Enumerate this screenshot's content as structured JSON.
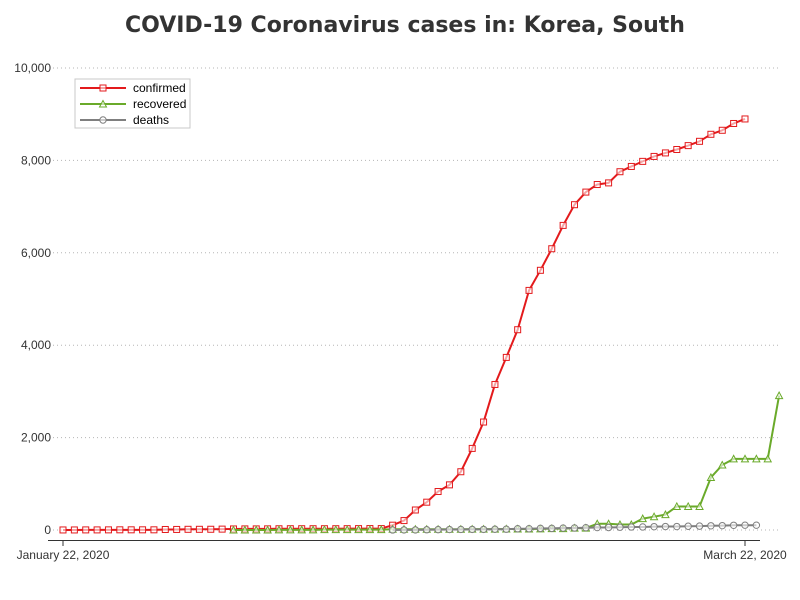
{
  "chart_data": {
    "type": "line",
    "title": "COVID-19 Coronavirus cases in: Korea, South",
    "xlabel": "",
    "ylabel": "",
    "x_start": "2020-01-22",
    "x_end": "2020-03-22",
    "x_tick_labels": [
      "January 22, 2020",
      "March 22, 2020"
    ],
    "ylim": [
      0,
      10000
    ],
    "y_ticks": [
      0,
      2000,
      4000,
      6000,
      8000,
      10000
    ],
    "y_tick_labels": [
      "0",
      "2,000",
      "4,000",
      "6,000",
      "8,000",
      "10,000"
    ],
    "grid": "horizontal-dotted",
    "legend_position": "top-left",
    "series": [
      {
        "name": "confirmed",
        "color": "#e31a1c",
        "marker": "square",
        "start": "2020-01-22",
        "values": [
          1,
          1,
          2,
          2,
          3,
          4,
          4,
          4,
          4,
          11,
          12,
          15,
          15,
          16,
          19,
          23,
          24,
          24,
          25,
          27,
          28,
          28,
          28,
          28,
          28,
          29,
          30,
          31,
          31,
          104,
          204,
          433,
          602,
          833,
          977,
          1261,
          1766,
          2337,
          3150,
          3736,
          4335,
          5186,
          5621,
          6088,
          6593,
          7041,
          7314,
          7478,
          7513,
          7755,
          7869,
          7979,
          8086,
          8162,
          8236,
          8320,
          8413,
          8565,
          8652,
          8799,
          8897
        ]
      },
      {
        "name": "recovered",
        "color": "#6aaa2a",
        "marker": "triangle",
        "start": "2020-02-06",
        "values": [
          0,
          1,
          1,
          1,
          3,
          3,
          3,
          3,
          7,
          7,
          7,
          7,
          7,
          9,
          16,
          16,
          16,
          16,
          16,
          16,
          16,
          18,
          18,
          18,
          22,
          22,
          22,
          24,
          30,
          30,
          41,
          41,
          135,
          135,
          118,
          118,
          247,
          288,
          333,
          510,
          510,
          510,
          1137,
          1407,
          1540,
          1540,
          1540,
          1540,
          2909
        ]
      },
      {
        "name": "deaths",
        "color": "#7f7f7f",
        "marker": "circle",
        "start": "2020-02-20",
        "values": [
          1,
          2,
          2,
          6,
          8,
          10,
          12,
          13,
          13,
          16,
          17,
          28,
          28,
          35,
          35,
          42,
          44,
          50,
          53,
          54,
          60,
          66,
          66,
          72,
          75,
          75,
          81,
          84,
          91,
          94,
          102,
          104,
          104
        ]
      }
    ]
  }
}
